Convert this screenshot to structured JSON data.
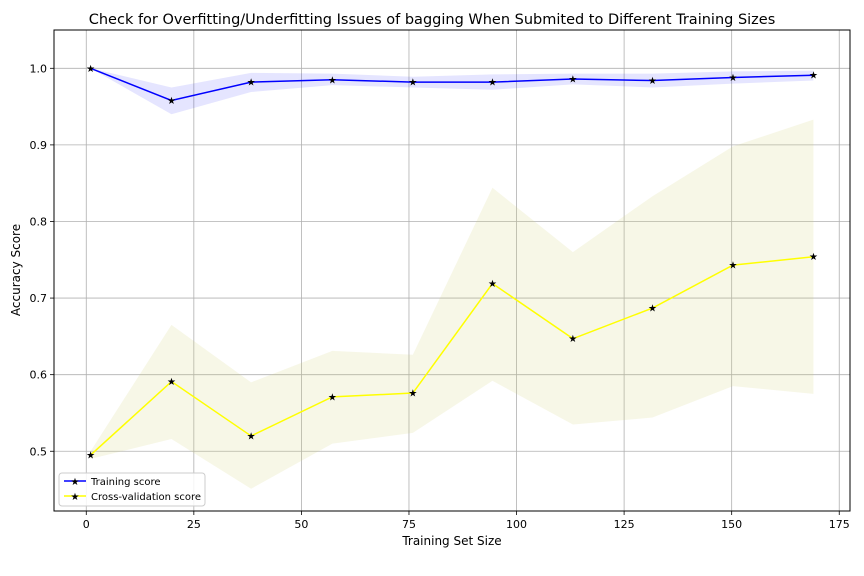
{
  "chart_data": {
    "type": "line",
    "title": "Check for Overfitting/Underfitting Issues of bagging When Submited to Different Training Sizes",
    "xlabel": "Training Set Size",
    "ylabel": "Accuracy Score",
    "xlim": [
      -7.5,
      177.5
    ],
    "ylim": [
      0.422,
      1.05
    ],
    "xticks": [
      0,
      25,
      50,
      75,
      100,
      125,
      150,
      175
    ],
    "yticks": [
      0.5,
      0.6,
      0.7,
      0.8,
      0.9,
      1.0
    ],
    "grid": true,
    "legend_position": "lower-left",
    "x": [
      1,
      19.8,
      38.3,
      57.2,
      75.9,
      94.4,
      113.1,
      131.6,
      150.3,
      169
    ],
    "series": [
      {
        "name": "Training score",
        "color": "#0000ff",
        "band_color": "#0000ff",
        "marker": "star",
        "values": [
          1.0,
          0.958,
          0.982,
          0.985,
          0.982,
          0.982,
          0.986,
          0.984,
          0.988,
          0.991
        ],
        "band_lower": [
          1.0,
          0.94,
          0.969,
          0.978,
          0.975,
          0.972,
          0.979,
          0.975,
          0.98,
          0.984
        ],
        "band_upper": [
          1.0,
          0.975,
          0.994,
          0.993,
          0.989,
          0.992,
          0.993,
          0.993,
          0.996,
          0.997
        ]
      },
      {
        "name": "Cross-validation score",
        "color": "#ffff00",
        "band_color": "#d4d27a",
        "marker": "star",
        "values": [
          0.495,
          0.591,
          0.52,
          0.571,
          0.576,
          0.719,
          0.647,
          0.687,
          0.743,
          0.754
        ],
        "band_lower": [
          0.49,
          0.516,
          0.451,
          0.51,
          0.524,
          0.592,
          0.535,
          0.544,
          0.585,
          0.575
        ],
        "band_upper": [
          0.5,
          0.665,
          0.59,
          0.631,
          0.626,
          0.844,
          0.76,
          0.833,
          0.898,
          0.933
        ]
      }
    ]
  }
}
